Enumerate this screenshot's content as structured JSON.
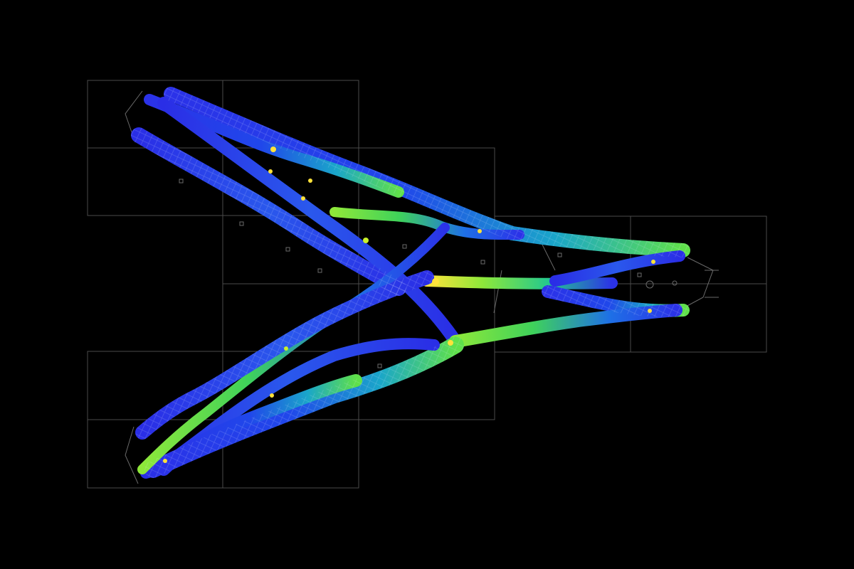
{
  "colors": {
    "background": "#000000",
    "grid_line": "#5a5a5a",
    "low": "#2a2ee6",
    "mid_low": "#1f86e0",
    "mid": "#18c9a8",
    "mid_high": "#5fe04a",
    "high": "#b9f02a",
    "peak": "#ffe23a",
    "mesh": "#d8e4ff"
  },
  "icons": {
    "visualization": "branching-structure-stress-map"
  }
}
